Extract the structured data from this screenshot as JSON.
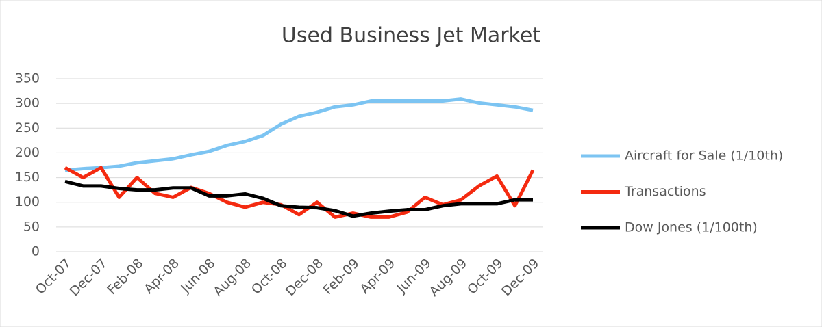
{
  "chart_data": {
    "type": "line",
    "title": "Used Business Jet Market",
    "categories": [
      "Oct-07",
      null,
      "Dec-07",
      null,
      "Feb-08",
      null,
      "Apr-08",
      null,
      "Jun-08",
      null,
      "Aug-08",
      null,
      "Oct-08",
      null,
      "Dec-08",
      null,
      "Feb-09",
      null,
      "Apr-09",
      null,
      "Jun-09",
      null,
      "Aug-09",
      null,
      "Oct-09",
      null,
      "Dec-09"
    ],
    "series": [
      {
        "name": "Aircraft for Sale (1/10th)",
        "color": "#7cc4f2",
        "values": [
          165,
          168,
          170,
          173,
          180,
          184,
          188,
          196,
          203,
          215,
          223,
          235,
          258,
          274,
          282,
          293,
          297,
          305,
          305,
          305,
          305,
          305,
          309,
          301,
          297,
          293,
          286
        ]
      },
      {
        "name": "Transactions",
        "color": "#f42a10",
        "values": [
          170,
          150,
          170,
          110,
          150,
          118,
          110,
          130,
          118,
          100,
          90,
          100,
          95,
          75,
          100,
          70,
          78,
          70,
          70,
          80,
          110,
          95,
          105,
          133,
          153,
          93,
          165
        ]
      },
      {
        "name": "Dow Jones (1/100th)",
        "color": "#000000",
        "values": [
          142,
          133,
          133,
          128,
          125,
          125,
          129,
          129,
          113,
          113,
          117,
          108,
          93,
          90,
          89,
          83,
          72,
          78,
          82,
          85,
          85,
          93,
          97,
          97,
          97,
          105,
          105
        ]
      }
    ],
    "ylim": [
      0,
      350
    ],
    "yticks": [
      0,
      50,
      100,
      150,
      200,
      250,
      300,
      350
    ],
    "grid": true,
    "legend": "right"
  }
}
